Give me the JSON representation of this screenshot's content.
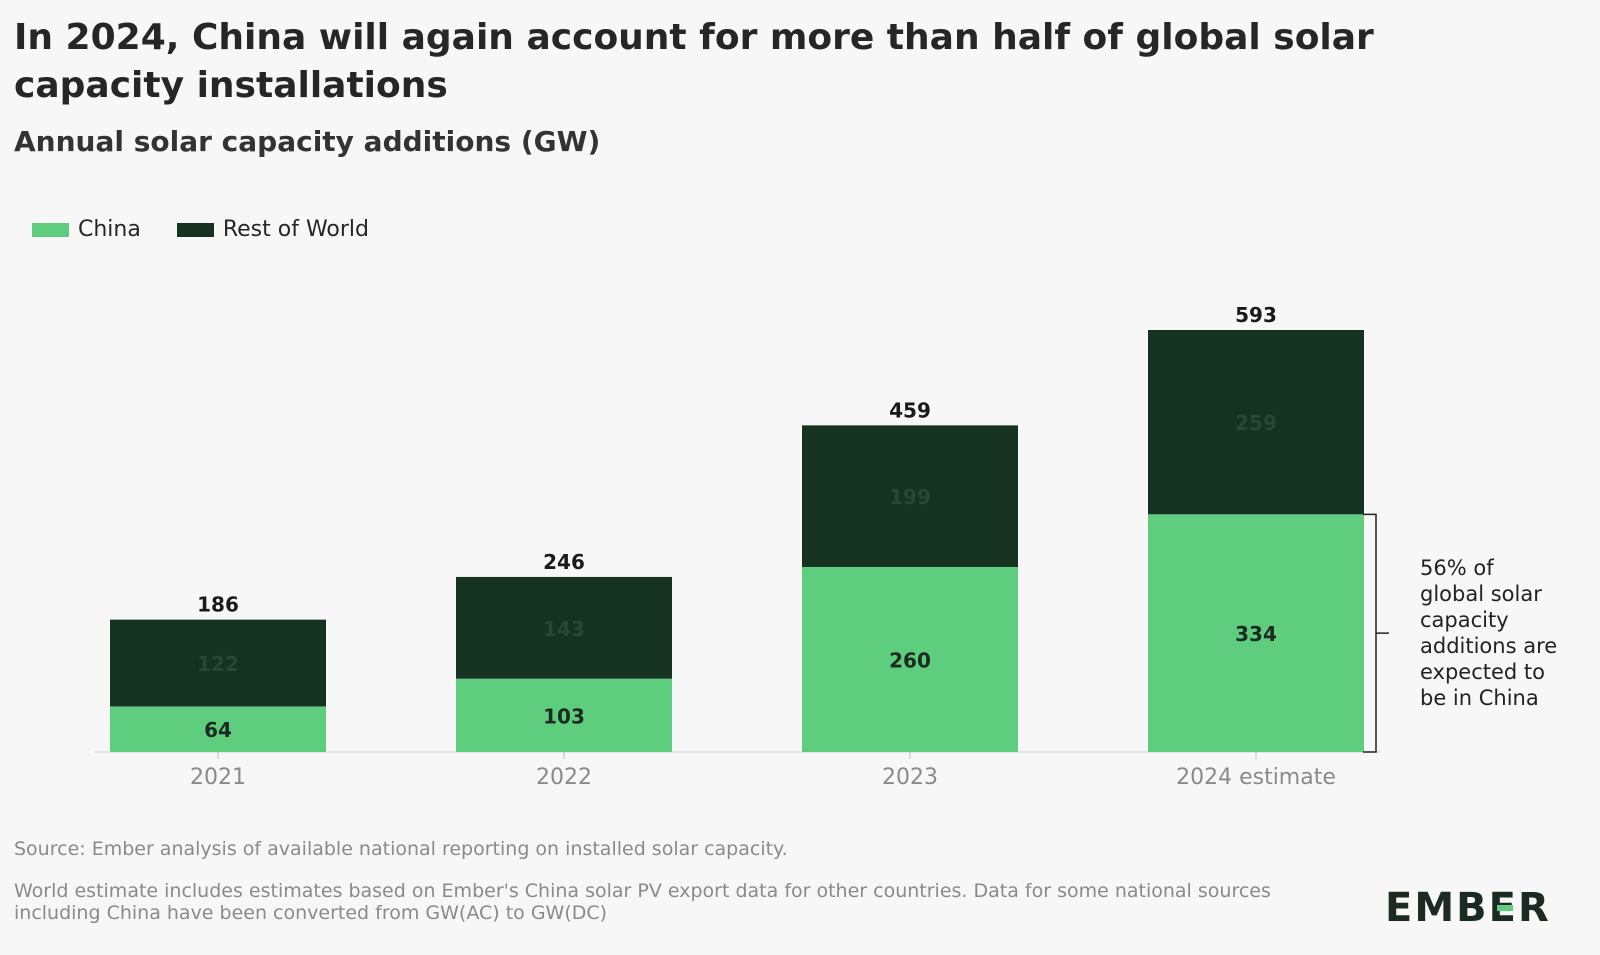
{
  "title": "In 2024, China will again account for more than half of global solar capacity installations",
  "subtitle": "Annual solar capacity additions (GW)",
  "legend": [
    {
      "label": "China",
      "color": "#5ecd7e"
    },
    {
      "label": "Rest of World",
      "color": "#163322"
    }
  ],
  "chart_data": {
    "type": "bar",
    "stacked": true,
    "categories": [
      "2021",
      "2022",
      "2023",
      "2024 estimate"
    ],
    "series": [
      {
        "name": "China",
        "values": [
          64,
          103,
          260,
          334
        ],
        "color": "#5ecd7e"
      },
      {
        "name": "Rest of World",
        "values": [
          122,
          143,
          199,
          259
        ],
        "color": "#163322"
      }
    ],
    "totals": [
      186,
      246,
      459,
      593
    ],
    "title": "In 2024, China will again account for more than half of global solar capacity installations",
    "subtitle": "Annual solar capacity additions (GW)",
    "xlabel": "",
    "ylabel": "",
    "ylim": [
      0,
      593
    ],
    "grid": false,
    "legend_position": "top-left",
    "annotation": {
      "category": "2024 estimate",
      "series": "China",
      "lines": [
        "56% of",
        "global solar",
        "capacity",
        "additions are",
        "expected to",
        "be in China"
      ]
    }
  },
  "source": "Source: Ember analysis of available national reporting on installed solar capacity.",
  "note": "World estimate includes estimates based on Ember's China solar PV export data for other countries. Data for some national sources including China have been converted from GW(AC) to GW(DC)",
  "logo": {
    "text": "EMBER",
    "accent_color": "#5ecd7e"
  }
}
